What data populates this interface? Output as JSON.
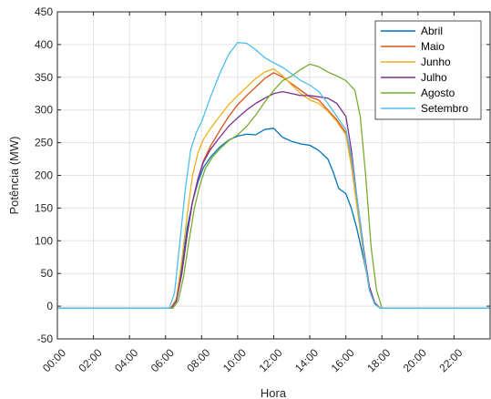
{
  "chart_data": {
    "type": "line",
    "title": "",
    "xlabel": "Hora",
    "ylabel": "Potência (MW)",
    "xlim": [
      0,
      24
    ],
    "ylim": [
      -50,
      450
    ],
    "x_ticks": [
      0,
      2,
      4,
      6,
      8,
      10,
      12,
      14,
      16,
      18,
      20,
      22
    ],
    "x_tick_labels": [
      "00:00",
      "02:00",
      "04:00",
      "06:00",
      "08:00",
      "10:00",
      "12:00",
      "14:00",
      "16:00",
      "18:00",
      "20:00",
      "22:00"
    ],
    "y_ticks": [
      -50,
      0,
      50,
      100,
      150,
      200,
      250,
      300,
      350,
      400,
      450
    ],
    "y_tick_labels": [
      "-50",
      "0",
      "50",
      "100",
      "150",
      "200",
      "250",
      "300",
      "350",
      "400",
      "450"
    ],
    "grid": true,
    "legend_position": "top-right",
    "series": [
      {
        "name": "Abril",
        "color": "#0072BD",
        "points": [
          [
            0,
            -3
          ],
          [
            6.3,
            -3
          ],
          [
            6.6,
            10
          ],
          [
            6.9,
            60
          ],
          [
            7.2,
            120
          ],
          [
            7.5,
            160
          ],
          [
            7.8,
            190
          ],
          [
            8.1,
            212
          ],
          [
            8.5,
            228
          ],
          [
            9,
            243
          ],
          [
            9.5,
            254
          ],
          [
            10,
            260
          ],
          [
            10.5,
            263
          ],
          [
            11,
            262
          ],
          [
            11.5,
            270
          ],
          [
            12,
            272
          ],
          [
            12.5,
            258
          ],
          [
            13,
            252
          ],
          [
            13.5,
            248
          ],
          [
            14,
            246
          ],
          [
            14.5,
            238
          ],
          [
            15,
            225
          ],
          [
            15.3,
            205
          ],
          [
            15.6,
            180
          ],
          [
            16,
            172
          ],
          [
            16.3,
            150
          ],
          [
            16.6,
            120
          ],
          [
            17,
            70
          ],
          [
            17.3,
            30
          ],
          [
            17.6,
            5
          ],
          [
            17.9,
            -3
          ],
          [
            24,
            -3
          ]
        ]
      },
      {
        "name": "Maio",
        "color": "#D95319",
        "points": [
          [
            0,
            -3
          ],
          [
            6.3,
            -3
          ],
          [
            6.6,
            8
          ],
          [
            6.9,
            50
          ],
          [
            7.2,
            110
          ],
          [
            7.5,
            160
          ],
          [
            7.8,
            195
          ],
          [
            8.1,
            222
          ],
          [
            8.5,
            245
          ],
          [
            9,
            268
          ],
          [
            9.5,
            290
          ],
          [
            10,
            308
          ],
          [
            10.5,
            322
          ],
          [
            11,
            335
          ],
          [
            11.5,
            348
          ],
          [
            12,
            357
          ],
          [
            12.5,
            350
          ],
          [
            13,
            340
          ],
          [
            13.5,
            330
          ],
          [
            14,
            320
          ],
          [
            14.5,
            315
          ],
          [
            15,
            300
          ],
          [
            15.5,
            285
          ],
          [
            16,
            265
          ],
          [
            16.3,
            220
          ],
          [
            16.6,
            160
          ],
          [
            17,
            80
          ],
          [
            17.3,
            30
          ],
          [
            17.6,
            5
          ],
          [
            17.9,
            -3
          ],
          [
            24,
            -3
          ]
        ]
      },
      {
        "name": "Junho",
        "color": "#EDB120",
        "points": [
          [
            0,
            -3
          ],
          [
            6.3,
            -3
          ],
          [
            6.6,
            12
          ],
          [
            6.9,
            70
          ],
          [
            7.2,
            140
          ],
          [
            7.5,
            200
          ],
          [
            7.8,
            235
          ],
          [
            8.1,
            255
          ],
          [
            8.5,
            272
          ],
          [
            9,
            290
          ],
          [
            9.5,
            308
          ],
          [
            10,
            322
          ],
          [
            10.5,
            335
          ],
          [
            11,
            348
          ],
          [
            11.5,
            358
          ],
          [
            12,
            363
          ],
          [
            12.5,
            352
          ],
          [
            13,
            338
          ],
          [
            13.5,
            325
          ],
          [
            14,
            315
          ],
          [
            14.5,
            310
          ],
          [
            15,
            298
          ],
          [
            15.5,
            282
          ],
          [
            16,
            262
          ],
          [
            16.3,
            215
          ],
          [
            16.6,
            155
          ],
          [
            17,
            75
          ],
          [
            17.3,
            25
          ],
          [
            17.6,
            3
          ],
          [
            17.9,
            -3
          ],
          [
            24,
            -3
          ]
        ]
      },
      {
        "name": "Julho",
        "color": "#7E2F8E",
        "points": [
          [
            0,
            -3
          ],
          [
            6.3,
            -3
          ],
          [
            6.6,
            8
          ],
          [
            6.9,
            50
          ],
          [
            7.2,
            110
          ],
          [
            7.5,
            160
          ],
          [
            7.8,
            195
          ],
          [
            8.1,
            220
          ],
          [
            8.5,
            240
          ],
          [
            9,
            258
          ],
          [
            9.5,
            275
          ],
          [
            10,
            288
          ],
          [
            10.5,
            300
          ],
          [
            11,
            310
          ],
          [
            11.5,
            318
          ],
          [
            12,
            325
          ],
          [
            12.5,
            328
          ],
          [
            13,
            325
          ],
          [
            13.5,
            322
          ],
          [
            14,
            322
          ],
          [
            14.5,
            320
          ],
          [
            15,
            318
          ],
          [
            15.5,
            310
          ],
          [
            16,
            290
          ],
          [
            16.3,
            240
          ],
          [
            16.6,
            170
          ],
          [
            17,
            85
          ],
          [
            17.3,
            30
          ],
          [
            17.6,
            5
          ],
          [
            17.9,
            -3
          ],
          [
            24,
            -3
          ]
        ]
      },
      {
        "name": "Agosto",
        "color": "#77AC30",
        "points": [
          [
            0,
            -3
          ],
          [
            6.4,
            -3
          ],
          [
            6.7,
            8
          ],
          [
            7,
            45
          ],
          [
            7.3,
            100
          ],
          [
            7.6,
            150
          ],
          [
            7.9,
            185
          ],
          [
            8.2,
            210
          ],
          [
            8.6,
            228
          ],
          [
            9,
            240
          ],
          [
            9.5,
            253
          ],
          [
            10,
            262
          ],
          [
            10.5,
            275
          ],
          [
            11,
            292
          ],
          [
            11.5,
            312
          ],
          [
            12,
            330
          ],
          [
            12.5,
            345
          ],
          [
            13,
            352
          ],
          [
            13.5,
            362
          ],
          [
            14,
            370
          ],
          [
            14.5,
            366
          ],
          [
            15,
            358
          ],
          [
            15.5,
            352
          ],
          [
            16,
            345
          ],
          [
            16.5,
            330
          ],
          [
            16.8,
            290
          ],
          [
            17.1,
            200
          ],
          [
            17.4,
            90
          ],
          [
            17.7,
            25
          ],
          [
            18,
            -3
          ],
          [
            24,
            -3
          ]
        ]
      },
      {
        "name": "Setembro",
        "color": "#4DBEEE",
        "points": [
          [
            0,
            -3
          ],
          [
            6.2,
            -3
          ],
          [
            6.5,
            20
          ],
          [
            6.8,
            100
          ],
          [
            7.1,
            180
          ],
          [
            7.4,
            240
          ],
          [
            7.7,
            265
          ],
          [
            8,
            282
          ],
          [
            8.5,
            320
          ],
          [
            9,
            355
          ],
          [
            9.5,
            385
          ],
          [
            10,
            403
          ],
          [
            10.5,
            402
          ],
          [
            11,
            392
          ],
          [
            11.5,
            380
          ],
          [
            12,
            372
          ],
          [
            12.5,
            365
          ],
          [
            13,
            355
          ],
          [
            13.5,
            345
          ],
          [
            14,
            338
          ],
          [
            14.5,
            328
          ],
          [
            15,
            310
          ],
          [
            15.5,
            290
          ],
          [
            16,
            270
          ],
          [
            16.3,
            230
          ],
          [
            16.6,
            170
          ],
          [
            17,
            80
          ],
          [
            17.3,
            25
          ],
          [
            17.6,
            3
          ],
          [
            17.9,
            -3
          ],
          [
            24,
            -3
          ]
        ]
      }
    ]
  }
}
